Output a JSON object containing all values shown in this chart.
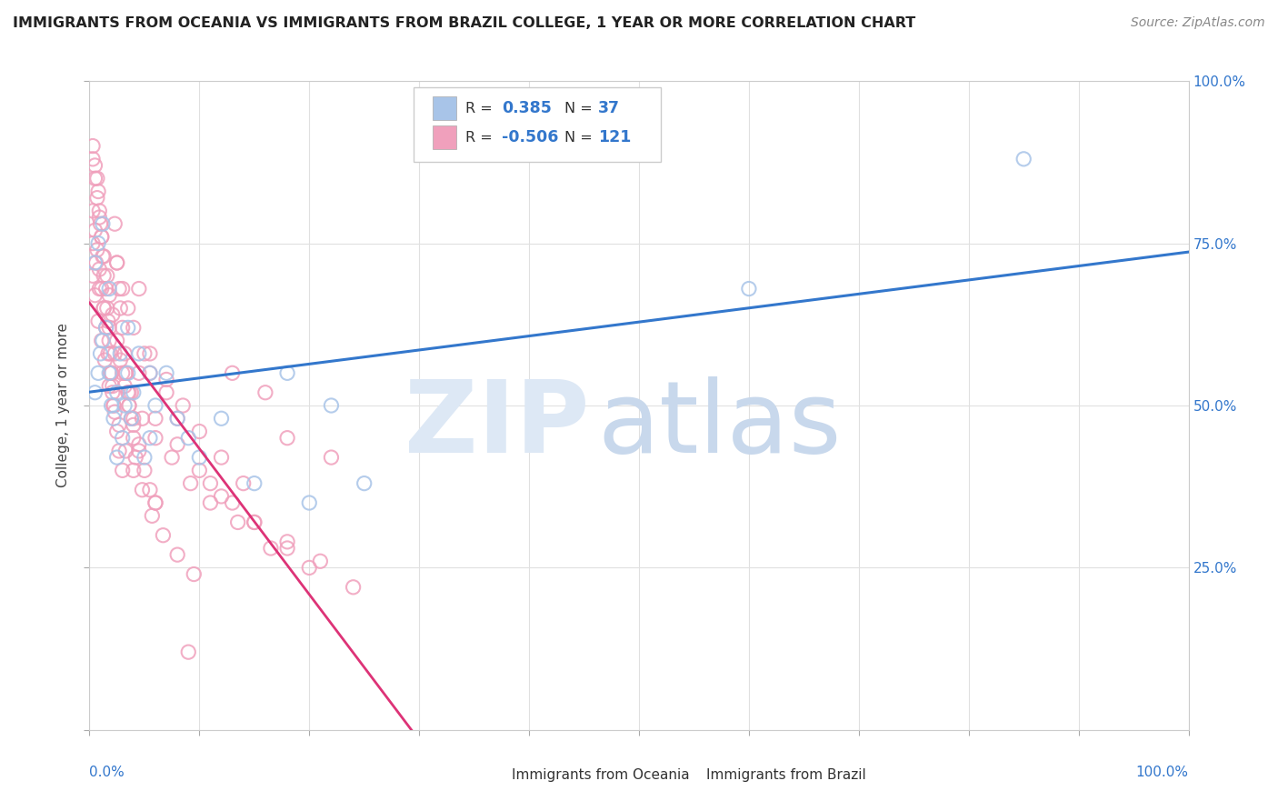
{
  "title": "IMMIGRANTS FROM OCEANIA VS IMMIGRANTS FROM BRAZIL COLLEGE, 1 YEAR OR MORE CORRELATION CHART",
  "source": "Source: ZipAtlas.com",
  "ylabel": "College, 1 year or more",
  "legend_oceania_R": "0.385",
  "legend_oceania_N": "37",
  "legend_brazil_R": "-0.506",
  "legend_brazil_N": "121",
  "oceania_color": "#a8c4e8",
  "brazil_color": "#f0a0bc",
  "oceania_line_color": "#3377cc",
  "brazil_line_color": "#dd3377",
  "right_tick_color": "#3377cc",
  "watermark_zip_color": "#dde8f5",
  "watermark_atlas_color": "#c8d8ec",
  "background_color": "#ffffff",
  "grid_color": "#e0e0e0",
  "xlim": [
    0.0,
    1.0
  ],
  "ylim": [
    0.0,
    1.0
  ],
  "oceania_x": [
    0.005,
    0.008,
    0.01,
    0.012,
    0.015,
    0.018,
    0.02,
    0.022,
    0.025,
    0.028,
    0.03,
    0.032,
    0.035,
    0.038,
    0.04,
    0.045,
    0.05,
    0.055,
    0.06,
    0.07,
    0.08,
    0.09,
    0.1,
    0.12,
    0.15,
    0.18,
    0.2,
    0.22,
    0.25,
    0.005,
    0.008,
    0.012,
    0.018,
    0.025,
    0.035,
    0.055,
    0.6,
    0.85
  ],
  "oceania_y": [
    0.52,
    0.55,
    0.58,
    0.6,
    0.62,
    0.55,
    0.5,
    0.48,
    0.52,
    0.58,
    0.45,
    0.5,
    0.55,
    0.48,
    0.52,
    0.58,
    0.42,
    0.45,
    0.5,
    0.55,
    0.48,
    0.45,
    0.42,
    0.48,
    0.38,
    0.55,
    0.35,
    0.5,
    0.38,
    0.72,
    0.75,
    0.78,
    0.68,
    0.42,
    0.62,
    0.55,
    0.68,
    0.88
  ],
  "brazil_x": [
    0.003,
    0.005,
    0.007,
    0.008,
    0.009,
    0.01,
    0.011,
    0.012,
    0.013,
    0.015,
    0.016,
    0.017,
    0.018,
    0.019,
    0.02,
    0.021,
    0.022,
    0.023,
    0.025,
    0.027,
    0.028,
    0.03,
    0.032,
    0.033,
    0.035,
    0.036,
    0.038,
    0.04,
    0.042,
    0.045,
    0.003,
    0.005,
    0.007,
    0.009,
    0.011,
    0.013,
    0.015,
    0.017,
    0.019,
    0.021,
    0.023,
    0.025,
    0.027,
    0.03,
    0.033,
    0.036,
    0.04,
    0.045,
    0.05,
    0.055,
    0.003,
    0.005,
    0.007,
    0.009,
    0.011,
    0.013,
    0.016,
    0.018,
    0.021,
    0.025,
    0.028,
    0.032,
    0.036,
    0.04,
    0.045,
    0.05,
    0.055,
    0.06,
    0.07,
    0.08,
    0.003,
    0.005,
    0.008,
    0.011,
    0.014,
    0.018,
    0.022,
    0.027,
    0.033,
    0.04,
    0.048,
    0.057,
    0.067,
    0.08,
    0.095,
    0.11,
    0.13,
    0.15,
    0.18,
    0.21,
    0.003,
    0.006,
    0.009,
    0.013,
    0.018,
    0.023,
    0.03,
    0.038,
    0.048,
    0.06,
    0.075,
    0.092,
    0.11,
    0.135,
    0.165,
    0.2,
    0.24,
    0.18,
    0.22,
    0.13,
    0.16,
    0.045,
    0.02,
    0.025,
    0.03,
    0.035,
    0.04,
    0.055,
    0.07,
    0.085,
    0.1,
    0.12,
    0.14,
    0.06,
    0.08,
    0.1,
    0.12,
    0.15,
    0.18,
    0.06,
    0.09
  ],
  "brazil_y": [
    0.9,
    0.87,
    0.85,
    0.83,
    0.8,
    0.78,
    0.76,
    0.73,
    0.7,
    0.68,
    0.65,
    0.63,
    0.6,
    0.58,
    0.55,
    0.53,
    0.5,
    0.78,
    0.72,
    0.68,
    0.65,
    0.62,
    0.58,
    0.55,
    0.52,
    0.5,
    0.48,
    0.45,
    0.42,
    0.55,
    0.8,
    0.77,
    0.74,
    0.71,
    0.68,
    0.65,
    0.62,
    0.58,
    0.55,
    0.52,
    0.49,
    0.46,
    0.43,
    0.4,
    0.55,
    0.52,
    0.48,
    0.44,
    0.58,
    0.55,
    0.88,
    0.85,
    0.82,
    0.79,
    0.76,
    0.73,
    0.7,
    0.67,
    0.64,
    0.6,
    0.57,
    0.53,
    0.5,
    0.47,
    0.43,
    0.4,
    0.37,
    0.35,
    0.52,
    0.48,
    0.7,
    0.67,
    0.63,
    0.6,
    0.57,
    0.53,
    0.5,
    0.47,
    0.43,
    0.4,
    0.37,
    0.33,
    0.3,
    0.27,
    0.24,
    0.38,
    0.35,
    0.32,
    0.29,
    0.26,
    0.75,
    0.72,
    0.68,
    0.65,
    0.62,
    0.58,
    0.55,
    0.52,
    0.48,
    0.45,
    0.42,
    0.38,
    0.35,
    0.32,
    0.28,
    0.25,
    0.22,
    0.45,
    0.42,
    0.55,
    0.52,
    0.68,
    0.55,
    0.72,
    0.68,
    0.65,
    0.62,
    0.58,
    0.54,
    0.5,
    0.46,
    0.42,
    0.38,
    0.48,
    0.44,
    0.4,
    0.36,
    0.32,
    0.28,
    0.35,
    0.12
  ]
}
